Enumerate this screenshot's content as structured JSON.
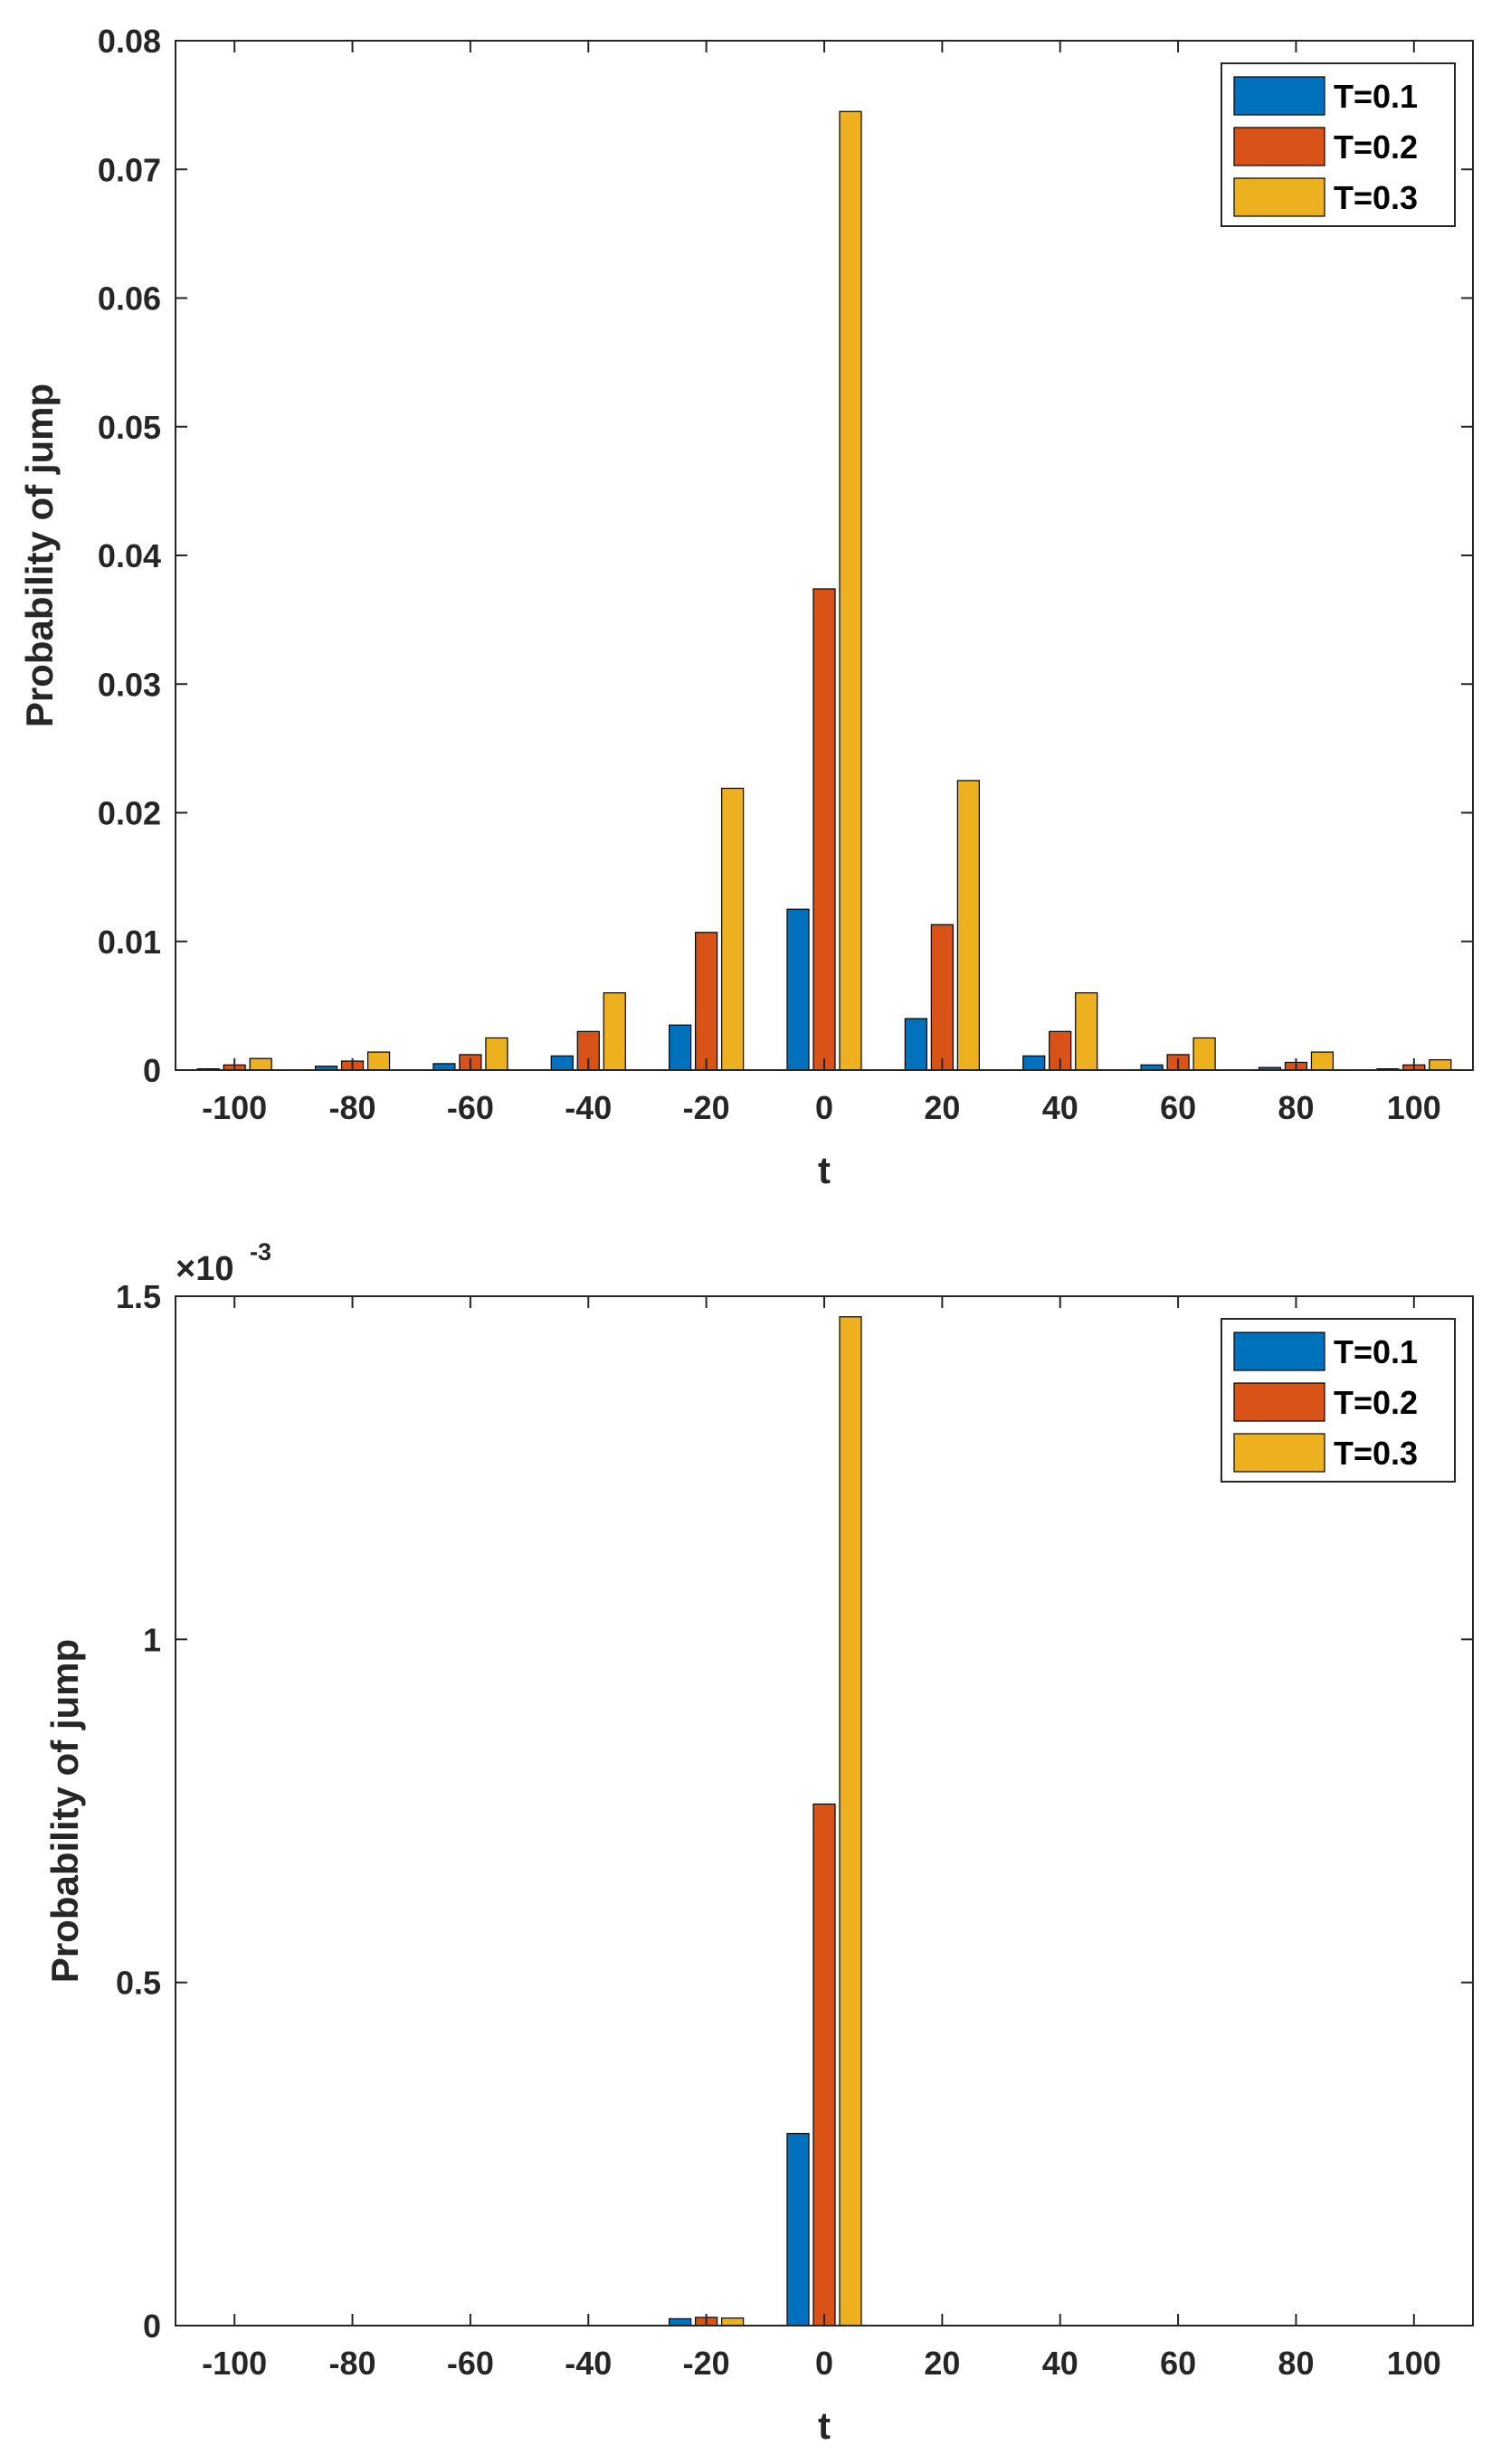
{
  "colors": {
    "series": [
      "#0072BD",
      "#D95319",
      "#EDB120"
    ],
    "axis": "#262626"
  },
  "chart_data": [
    {
      "type": "bar",
      "title": "",
      "xlabel": "t",
      "ylabel": "Probability of jump",
      "categories": [
        -100,
        -80,
        -60,
        -40,
        -20,
        0,
        20,
        40,
        60,
        80,
        100
      ],
      "x_tick_labels": [
        "-100",
        "-80",
        "-60",
        "-40",
        "-20",
        "0",
        "20",
        "40",
        "60",
        "80",
        "100"
      ],
      "xlim": [
        -110,
        110
      ],
      "ylim": [
        0,
        0.08
      ],
      "y_ticks": [
        0,
        0.01,
        0.02,
        0.03,
        0.04,
        0.05,
        0.06,
        0.07,
        0.08
      ],
      "y_tick_labels": [
        "0",
        "0.01",
        "0.02",
        "0.03",
        "0.04",
        "0.05",
        "0.06",
        "0.07",
        "0.08"
      ],
      "y_exponent_label": "",
      "legend_position": "top-right",
      "series": [
        {
          "name": "T=0.1",
          "values": [
            0.0001,
            0.0003,
            0.0005,
            0.0011,
            0.0035,
            0.0125,
            0.004,
            0.0011,
            0.0004,
            0.0002,
            0.0001
          ]
        },
        {
          "name": "T=0.2",
          "values": [
            0.0004,
            0.0007,
            0.0012,
            0.003,
            0.0107,
            0.0374,
            0.0113,
            0.003,
            0.0012,
            0.0006,
            0.0004
          ]
        },
        {
          "name": "T=0.3",
          "values": [
            0.0009,
            0.0014,
            0.0025,
            0.006,
            0.0219,
            0.0745,
            0.0225,
            0.006,
            0.0025,
            0.0014,
            0.0008
          ]
        }
      ]
    },
    {
      "type": "bar",
      "title": "",
      "xlabel": "t",
      "ylabel": "Probability of jump",
      "categories": [
        -100,
        -80,
        -60,
        -40,
        -20,
        0,
        20,
        40,
        60,
        80,
        100
      ],
      "x_tick_labels": [
        "-100",
        "-80",
        "-60",
        "-40",
        "-20",
        "0",
        "20",
        "40",
        "60",
        "80",
        "100"
      ],
      "xlim": [
        -110,
        110
      ],
      "ylim": [
        0,
        1.5
      ],
      "y_ticks": [
        0,
        0.5,
        1,
        1.5
      ],
      "y_tick_labels": [
        "0",
        "0.5",
        "1",
        "1.5"
      ],
      "y_exponent_label": "×10",
      "y_exponent_power": "-3",
      "legend_position": "top-right",
      "series": [
        {
          "name": "T=0.1",
          "values": [
            0,
            0,
            0,
            0,
            0.01,
            0.28,
            0,
            0,
            0,
            0,
            0
          ]
        },
        {
          "name": "T=0.2",
          "values": [
            0,
            0,
            0,
            0,
            0.012,
            0.76,
            0,
            0,
            0,
            0,
            0
          ]
        },
        {
          "name": "T=0.3",
          "values": [
            0,
            0,
            0,
            0,
            0.011,
            1.47,
            0,
            0,
            0,
            0,
            0
          ]
        }
      ]
    }
  ]
}
